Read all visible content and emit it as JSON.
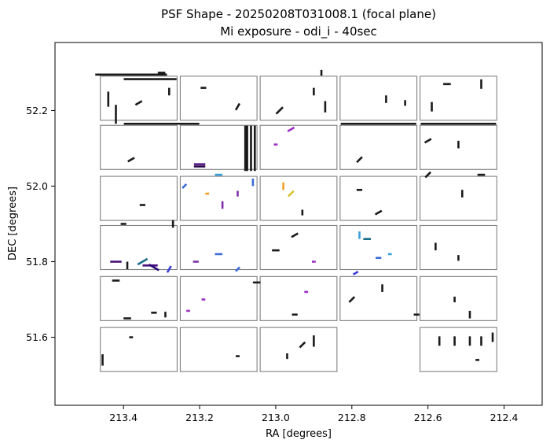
{
  "chart_data": {
    "type": "scatter",
    "title": "PSF Shape - 20250208T031008.1 (focal plane)",
    "subtitle": "Mi exposure - odi_i - 40sec",
    "xlabel": "RA [degrees]",
    "ylabel": "DEC [degrees]",
    "xlim": [
      213.58,
      212.3
    ],
    "ylim": [
      51.42,
      52.38
    ],
    "x_inverted": true,
    "xticks": [
      213.4,
      213.2,
      213.0,
      212.8,
      212.6,
      212.4
    ],
    "xtick_labels": [
      "213.4",
      "213.2",
      "213.0",
      "212.8",
      "212.6",
      "212.4"
    ],
    "yticks": [
      51.6,
      51.8,
      52.0,
      52.2
    ],
    "ytick_labels": [
      "51.6",
      "51.8",
      "52.0",
      "52.2"
    ],
    "grid": false,
    "legend": "none",
    "ccd_outline_color": "#808080",
    "default_whisker_color": "#1a1a1a",
    "ccd_grid": {
      "ra_columns": [
        [
          213.465,
          213.255
        ],
        [
          213.255,
          213.045
        ],
        [
          213.045,
          212.835
        ],
        [
          212.835,
          212.625
        ],
        [
          212.625,
          212.415
        ]
      ],
      "dec_rows": [
        [
          52.295,
          52.17
        ],
        [
          52.165,
          52.04
        ],
        [
          52.03,
          51.905
        ],
        [
          51.9,
          51.775
        ],
        [
          51.765,
          51.64
        ],
        [
          51.63,
          51.505
        ]
      ],
      "missing": [
        [
          5,
          3
        ]
      ]
    },
    "whiskers": [
      {
        "ra": 213.38,
        "dec": 52.295,
        "angle": 0,
        "length": 0.19,
        "color": "#1a1a1a"
      },
      {
        "ra": 213.33,
        "dec": 52.283,
        "angle": 0,
        "length": 0.14,
        "color": "#1a1a1a"
      },
      {
        "ra": 213.44,
        "dec": 52.23,
        "angle": 90,
        "length": 0.04,
        "color": "#1a1a1a"
      },
      {
        "ra": 213.42,
        "dec": 52.19,
        "angle": 90,
        "length": 0.05,
        "color": "#1a1a1a"
      },
      {
        "ra": 213.36,
        "dec": 52.22,
        "angle": 30,
        "length": 0.02,
        "color": "#1a1a1a"
      },
      {
        "ra": 213.28,
        "dec": 52.25,
        "angle": 90,
        "length": 0.02,
        "color": "#1a1a1a"
      },
      {
        "ra": 213.19,
        "dec": 52.26,
        "angle": 0,
        "length": 0.015,
        "color": "#1a1a1a"
      },
      {
        "ra": 213.1,
        "dec": 52.21,
        "angle": 60,
        "length": 0.02,
        "color": "#1a1a1a"
      },
      {
        "ra": 212.99,
        "dec": 52.2,
        "angle": 45,
        "length": 0.025,
        "color": "#1a1a1a"
      },
      {
        "ra": 212.9,
        "dec": 52.25,
        "angle": 90,
        "length": 0.02,
        "color": "#1a1a1a"
      },
      {
        "ra": 212.87,
        "dec": 52.21,
        "angle": 90,
        "length": 0.03,
        "color": "#1a1a1a"
      },
      {
        "ra": 212.71,
        "dec": 52.23,
        "angle": 90,
        "length": 0.02,
        "color": "#1a1a1a"
      },
      {
        "ra": 212.66,
        "dec": 52.22,
        "angle": 90,
        "length": 0.015,
        "color": "#1a1a1a"
      },
      {
        "ra": 212.59,
        "dec": 52.21,
        "angle": 90,
        "length": 0.025,
        "color": "#1a1a1a"
      },
      {
        "ra": 212.55,
        "dec": 52.27,
        "angle": 0,
        "length": 0.02,
        "color": "#1a1a1a"
      },
      {
        "ra": 212.46,
        "dec": 52.27,
        "angle": 90,
        "length": 0.025,
        "color": "#1a1a1a"
      },
      {
        "ra": 213.3,
        "dec": 52.165,
        "angle": 0,
        "length": 0.2,
        "color": "#1a1a1a"
      },
      {
        "ra": 212.73,
        "dec": 52.165,
        "angle": 0,
        "length": 0.2,
        "color": "#1a1a1a"
      },
      {
        "ra": 212.52,
        "dec": 52.165,
        "angle": 0,
        "length": 0.2,
        "color": "#1a1a1a"
      },
      {
        "ra": 213.08,
        "dec": 52.1,
        "angle": 90,
        "length": 0.12,
        "color": "#1a1a1a"
      },
      {
        "ra": 213.075,
        "dec": 52.1,
        "angle": 90,
        "length": 0.12,
        "color": "#1a1a1a"
      },
      {
        "ra": 213.065,
        "dec": 52.1,
        "angle": 90,
        "length": 0.12,
        "color": "#1a1a1a"
      },
      {
        "ra": 213.055,
        "dec": 52.1,
        "angle": 90,
        "length": 0.12,
        "color": "#1a1a1a"
      },
      {
        "ra": 213.2,
        "dec": 52.052,
        "angle": 0,
        "length": 0.03,
        "color": "#2a0a4a"
      },
      {
        "ra": 213.2,
        "dec": 52.058,
        "angle": 0,
        "length": 0.03,
        "color": "#5b1a8a"
      },
      {
        "ra": 212.96,
        "dec": 52.15,
        "angle": 30,
        "length": 0.02,
        "color": "#9b30c0"
      },
      {
        "ra": 213.0,
        "dec": 52.11,
        "angle": 0,
        "length": 0.01,
        "color": "#9b30c0"
      },
      {
        "ra": 212.78,
        "dec": 52.07,
        "angle": 45,
        "length": 0.02,
        "color": "#1a1a1a"
      },
      {
        "ra": 212.6,
        "dec": 52.12,
        "angle": 30,
        "length": 0.02,
        "color": "#1a1a1a"
      },
      {
        "ra": 212.52,
        "dec": 52.11,
        "angle": 90,
        "length": 0.02,
        "color": "#1a1a1a"
      },
      {
        "ra": 213.38,
        "dec": 52.07,
        "angle": 30,
        "length": 0.02,
        "color": "#1a1a1a"
      },
      {
        "ra": 213.24,
        "dec": 52.0,
        "angle": 45,
        "length": 0.015,
        "color": "#3b6cd8"
      },
      {
        "ra": 213.15,
        "dec": 52.03,
        "angle": 0,
        "length": 0.02,
        "color": "#3b9fd8"
      },
      {
        "ra": 213.18,
        "dec": 51.98,
        "angle": 0,
        "length": 0.01,
        "color": "#f0a020"
      },
      {
        "ra": 213.1,
        "dec": 51.98,
        "angle": 90,
        "length": 0.015,
        "color": "#7b2fa8"
      },
      {
        "ra": 213.06,
        "dec": 52.01,
        "angle": 90,
        "length": 0.02,
        "color": "#3b6cd8"
      },
      {
        "ra": 212.98,
        "dec": 52.0,
        "angle": 90,
        "length": 0.02,
        "color": "#f0a020"
      },
      {
        "ra": 212.96,
        "dec": 51.98,
        "angle": 45,
        "length": 0.02,
        "color": "#d8c030"
      },
      {
        "ra": 213.35,
        "dec": 51.95,
        "angle": 0,
        "length": 0.015,
        "color": "#1a1a1a"
      },
      {
        "ra": 213.14,
        "dec": 51.95,
        "angle": 90,
        "length": 0.02,
        "color": "#7b2fa8"
      },
      {
        "ra": 212.93,
        "dec": 51.93,
        "angle": 90,
        "length": 0.015,
        "color": "#1a1a1a"
      },
      {
        "ra": 212.78,
        "dec": 51.99,
        "angle": 0,
        "length": 0.015,
        "color": "#1a1a1a"
      },
      {
        "ra": 212.73,
        "dec": 51.93,
        "angle": 30,
        "length": 0.02,
        "color": "#1a1a1a"
      },
      {
        "ra": 212.51,
        "dec": 51.98,
        "angle": 90,
        "length": 0.02,
        "color": "#1a1a1a"
      },
      {
        "ra": 212.6,
        "dec": 52.03,
        "angle": 45,
        "length": 0.02,
        "color": "#1a1a1a"
      },
      {
        "ra": 212.46,
        "dec": 52.03,
        "angle": 0,
        "length": 0.02,
        "color": "#1a1a1a"
      },
      {
        "ra": 213.42,
        "dec": 51.8,
        "angle": 0,
        "length": 0.03,
        "color": "#4b0f7a"
      },
      {
        "ra": 213.39,
        "dec": 51.79,
        "angle": 90,
        "length": 0.02,
        "color": "#1a1a1a"
      },
      {
        "ra": 213.35,
        "dec": 51.8,
        "angle": 30,
        "length": 0.03,
        "color": "#1a6b8a"
      },
      {
        "ra": 213.33,
        "dec": 51.79,
        "angle": 0,
        "length": 0.04,
        "color": "#4b0f7a"
      },
      {
        "ra": 213.32,
        "dec": 51.785,
        "angle": 150,
        "length": 0.03,
        "color": "#2a0a7a"
      },
      {
        "ra": 213.28,
        "dec": 51.78,
        "angle": 60,
        "length": 0.02,
        "color": "#3b3bd8"
      },
      {
        "ra": 213.21,
        "dec": 51.8,
        "angle": 0,
        "length": 0.015,
        "color": "#7b2fa8"
      },
      {
        "ra": 213.15,
        "dec": 51.82,
        "angle": 0,
        "length": 0.02,
        "color": "#3b6cd8"
      },
      {
        "ra": 213.1,
        "dec": 51.78,
        "angle": 45,
        "length": 0.015,
        "color": "#3b6cd8"
      },
      {
        "ra": 213.0,
        "dec": 51.83,
        "angle": 0,
        "length": 0.02,
        "color": "#1a1a1a"
      },
      {
        "ra": 212.95,
        "dec": 51.87,
        "angle": 30,
        "length": 0.02,
        "color": "#1a1a1a"
      },
      {
        "ra": 212.9,
        "dec": 51.8,
        "angle": 0,
        "length": 0.01,
        "color": "#9b30c0"
      },
      {
        "ra": 212.78,
        "dec": 51.87,
        "angle": 90,
        "length": 0.02,
        "color": "#3b9fd8"
      },
      {
        "ra": 212.76,
        "dec": 51.86,
        "angle": 0,
        "length": 0.02,
        "color": "#1a6b8a"
      },
      {
        "ra": 212.73,
        "dec": 51.81,
        "angle": 0,
        "length": 0.015,
        "color": "#3b6cd8"
      },
      {
        "ra": 212.7,
        "dec": 51.82,
        "angle": 0,
        "length": 0.01,
        "color": "#3b9fd8"
      },
      {
        "ra": 212.79,
        "dec": 51.77,
        "angle": 30,
        "length": 0.015,
        "color": "#3b3bd8"
      },
      {
        "ra": 212.58,
        "dec": 51.84,
        "angle": 90,
        "length": 0.02,
        "color": "#1a1a1a"
      },
      {
        "ra": 212.52,
        "dec": 51.81,
        "angle": 90,
        "length": 0.015,
        "color": "#1a1a1a"
      },
      {
        "ra": 213.42,
        "dec": 51.75,
        "angle": 0,
        "length": 0.02,
        "color": "#1a1a1a"
      },
      {
        "ra": 213.39,
        "dec": 51.65,
        "angle": 0,
        "length": 0.02,
        "color": "#1a1a1a"
      },
      {
        "ra": 213.32,
        "dec": 51.665,
        "angle": 0,
        "length": 0.015,
        "color": "#1a1a1a"
      },
      {
        "ra": 213.29,
        "dec": 51.66,
        "angle": 90,
        "length": 0.015,
        "color": "#1a1a1a"
      },
      {
        "ra": 213.23,
        "dec": 51.67,
        "angle": 0,
        "length": 0.01,
        "color": "#9b30c0"
      },
      {
        "ra": 213.19,
        "dec": 51.7,
        "angle": 0,
        "length": 0.01,
        "color": "#9b30c0"
      },
      {
        "ra": 213.05,
        "dec": 51.745,
        "angle": 0,
        "length": 0.02,
        "color": "#1a1a1a"
      },
      {
        "ra": 212.95,
        "dec": 51.66,
        "angle": 0,
        "length": 0.015,
        "color": "#1a1a1a"
      },
      {
        "ra": 212.92,
        "dec": 51.72,
        "angle": 0,
        "length": 0.01,
        "color": "#9b30c0"
      },
      {
        "ra": 212.8,
        "dec": 51.7,
        "angle": 45,
        "length": 0.02,
        "color": "#1a1a1a"
      },
      {
        "ra": 212.72,
        "dec": 51.73,
        "angle": 90,
        "length": 0.02,
        "color": "#1a1a1a"
      },
      {
        "ra": 212.63,
        "dec": 51.66,
        "angle": 0,
        "length": 0.015,
        "color": "#1a1a1a"
      },
      {
        "ra": 212.49,
        "dec": 51.66,
        "angle": 90,
        "length": 0.02,
        "color": "#1a1a1a"
      },
      {
        "ra": 212.53,
        "dec": 51.7,
        "angle": 90,
        "length": 0.015,
        "color": "#1a1a1a"
      },
      {
        "ra": 213.455,
        "dec": 51.54,
        "angle": 90,
        "length": 0.03,
        "color": "#1a1a1a"
      },
      {
        "ra": 213.38,
        "dec": 51.6,
        "angle": 0,
        "length": 0.01,
        "color": "#1a1a1a"
      },
      {
        "ra": 213.1,
        "dec": 51.55,
        "angle": 0,
        "length": 0.01,
        "color": "#1a1a1a"
      },
      {
        "ra": 212.9,
        "dec": 51.59,
        "angle": 90,
        "length": 0.03,
        "color": "#1a1a1a"
      },
      {
        "ra": 212.93,
        "dec": 51.58,
        "angle": 45,
        "length": 0.02,
        "color": "#1a1a1a"
      },
      {
        "ra": 212.97,
        "dec": 51.55,
        "angle": 90,
        "length": 0.015,
        "color": "#1a1a1a"
      },
      {
        "ra": 212.57,
        "dec": 51.59,
        "angle": 90,
        "length": 0.025,
        "color": "#1a1a1a"
      },
      {
        "ra": 212.53,
        "dec": 51.59,
        "angle": 90,
        "length": 0.025,
        "color": "#1a1a1a"
      },
      {
        "ra": 212.49,
        "dec": 51.59,
        "angle": 90,
        "length": 0.025,
        "color": "#1a1a1a"
      },
      {
        "ra": 212.46,
        "dec": 51.59,
        "angle": 90,
        "length": 0.025,
        "color": "#1a1a1a"
      },
      {
        "ra": 212.43,
        "dec": 51.6,
        "angle": 90,
        "length": 0.025,
        "color": "#1a1a1a"
      },
      {
        "ra": 212.47,
        "dec": 51.54,
        "angle": 0,
        "length": 0.01,
        "color": "#1a1a1a"
      },
      {
        "ra": 213.4,
        "dec": 51.9,
        "angle": 0,
        "length": 0.015,
        "color": "#1a1a1a"
      },
      {
        "ra": 213.27,
        "dec": 51.9,
        "angle": 90,
        "length": 0.02,
        "color": "#1a1a1a"
      },
      {
        "ra": 213.3,
        "dec": 52.3,
        "angle": 0,
        "length": 0.02,
        "color": "#1a1a1a"
      },
      {
        "ra": 212.88,
        "dec": 52.3,
        "angle": 90,
        "length": 0.015,
        "color": "#1a1a1a"
      }
    ]
  }
}
